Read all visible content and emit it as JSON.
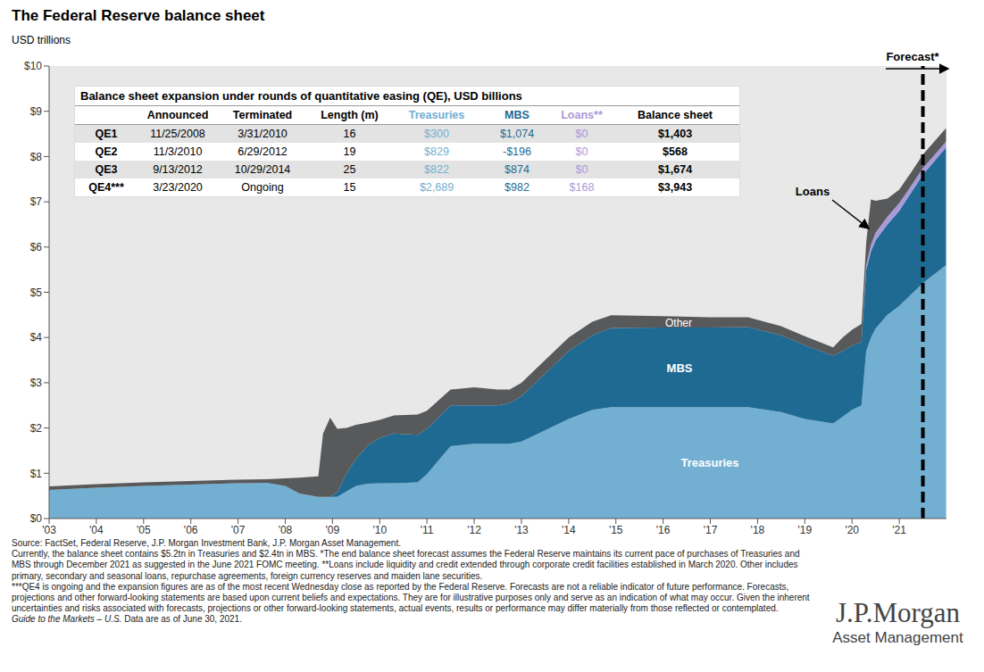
{
  "chart_data": {
    "type": "area",
    "stacked": true,
    "grid": false,
    "title": "The Federal Reserve balance sheet",
    "subtitle": "USD trillions",
    "x": [
      2003,
      2004,
      2005,
      2006,
      2007,
      2007.6,
      2008,
      2008.3,
      2008.7,
      2008.8,
      2008.95,
      2009.1,
      2009.3,
      2009.5,
      2009.75,
      2010,
      2010.3,
      2010.8,
      2011,
      2011.5,
      2012,
      2012.5,
      2012.75,
      2013,
      2013.5,
      2014,
      2014.5,
      2014.9,
      2016,
      2017,
      2017.8,
      2018.5,
      2019,
      2019.6,
      2019.8,
      2020,
      2020.2,
      2020.3,
      2020.4,
      2020.5,
      2020.75,
      2021,
      2021.25,
      2021.5,
      2021.99
    ],
    "series": [
      {
        "name": "Treasuries",
        "color": "#72afd1",
        "values": [
          0.63,
          0.68,
          0.72,
          0.75,
          0.78,
          0.79,
          0.72,
          0.55,
          0.48,
          0.48,
          0.48,
          0.48,
          0.6,
          0.72,
          0.77,
          0.78,
          0.78,
          0.8,
          0.98,
          1.6,
          1.65,
          1.65,
          1.65,
          1.7,
          1.95,
          2.2,
          2.4,
          2.46,
          2.46,
          2.46,
          2.46,
          2.35,
          2.2,
          2.1,
          2.25,
          2.4,
          2.5,
          3.7,
          4.0,
          4.2,
          4.5,
          4.7,
          4.95,
          5.2,
          5.6
        ]
      },
      {
        "name": "MBS",
        "color": "#1f6a93",
        "values": [
          0,
          0,
          0,
          0,
          0,
          0,
          0,
          0,
          0,
          0,
          0,
          0.1,
          0.4,
          0.6,
          0.85,
          1.0,
          1.1,
          1.05,
          1.0,
          0.9,
          0.85,
          0.85,
          0.9,
          1.0,
          1.25,
          1.5,
          1.65,
          1.75,
          1.76,
          1.76,
          1.77,
          1.7,
          1.63,
          1.5,
          1.45,
          1.42,
          1.4,
          1.8,
          1.9,
          1.95,
          2.0,
          2.1,
          2.25,
          2.4,
          2.6
        ]
      },
      {
        "name": "Loans",
        "color": "#a99ad9",
        "values": [
          0,
          0,
          0,
          0,
          0,
          0,
          0,
          0,
          0,
          0,
          0,
          0,
          0,
          0,
          0,
          0,
          0,
          0,
          0,
          0,
          0,
          0,
          0,
          0,
          0,
          0,
          0,
          0,
          0,
          0,
          0,
          0,
          0,
          0,
          0,
          0,
          0,
          0.1,
          0.15,
          0.17,
          0.17,
          0.17,
          0.15,
          0.14,
          0.13
        ]
      },
      {
        "name": "Other",
        "color": "#58595b",
        "values": [
          0.08,
          0.08,
          0.08,
          0.08,
          0.08,
          0.08,
          0.17,
          0.35,
          0.45,
          1.4,
          1.75,
          1.4,
          1.0,
          0.75,
          0.5,
          0.4,
          0.4,
          0.45,
          0.4,
          0.35,
          0.4,
          0.35,
          0.3,
          0.3,
          0.3,
          0.3,
          0.3,
          0.28,
          0.25,
          0.23,
          0.22,
          0.2,
          0.2,
          0.18,
          0.3,
          0.35,
          0.4,
          0.5,
          1.0,
          0.7,
          0.4,
          0.3,
          0.3,
          0.3,
          0.3
        ]
      }
    ],
    "xlim": [
      2003,
      2022
    ],
    "xticks": [
      {
        "value": 2003,
        "label": "'03"
      },
      {
        "value": 2004,
        "label": "'04"
      },
      {
        "value": 2005,
        "label": "'05"
      },
      {
        "value": 2006,
        "label": "'06"
      },
      {
        "value": 2007,
        "label": "'07"
      },
      {
        "value": 2008,
        "label": "'08"
      },
      {
        "value": 2009,
        "label": "'09"
      },
      {
        "value": 2010,
        "label": "'10"
      },
      {
        "value": 2011,
        "label": "'11"
      },
      {
        "value": 2012,
        "label": "'12"
      },
      {
        "value": 2013,
        "label": "'13"
      },
      {
        "value": 2014,
        "label": "'14"
      },
      {
        "value": 2015,
        "label": "'15"
      },
      {
        "value": 2016,
        "label": "'16"
      },
      {
        "value": 2017,
        "label": "'17"
      },
      {
        "value": 2018,
        "label": "'18"
      },
      {
        "value": 2019,
        "label": "'19"
      },
      {
        "value": 2020,
        "label": "'20"
      },
      {
        "value": 2021,
        "label": "'21"
      }
    ],
    "ylim": [
      0,
      10
    ],
    "yticks": [
      {
        "value": 0,
        "label": "$0"
      },
      {
        "value": 1,
        "label": "$1"
      },
      {
        "value": 2,
        "label": "$2"
      },
      {
        "value": 3,
        "label": "$3"
      },
      {
        "value": 4,
        "label": "$4"
      },
      {
        "value": 5,
        "label": "$5"
      },
      {
        "value": 6,
        "label": "$6"
      },
      {
        "value": 7,
        "label": "$7"
      },
      {
        "value": 8,
        "label": "$8"
      },
      {
        "value": 9,
        "label": "$9"
      },
      {
        "value": 10,
        "label": "$10"
      }
    ],
    "forecast_start": 2021.5,
    "forecast_label": "Forecast*"
  },
  "table": {
    "title": "Balance sheet expansion under rounds of quantitative easing (QE), USD billions",
    "columns": [
      "",
      "Announced",
      "Terminated",
      "Length (m)",
      "Treasuries",
      "MBS",
      "Loans**",
      "Balance sheet"
    ],
    "rows": [
      [
        "QE1",
        "11/25/2008",
        "3/31/2010",
        "16",
        "$300",
        "$1,074",
        "$0",
        "$1,403"
      ],
      [
        "QE2",
        "11/3/2010",
        "6/29/2012",
        "19",
        "$829",
        "-$196",
        "$0",
        "$568"
      ],
      [
        "QE3",
        "9/13/2012",
        "10/29/2014",
        "25",
        "$822",
        "$874",
        "$0",
        "$1,674"
      ],
      [
        "QE4***",
        "3/23/2020",
        "Ongoing",
        "15",
        "$2,689",
        "$982",
        "$168",
        "$3,943"
      ]
    ]
  },
  "footnotes": {
    "lines": [
      "Source: FactSet, Federal Reserve, J.P. Morgan Investment Bank, J.P. Morgan Asset Management.",
      "Currently, the balance sheet contains $5.2tn in Treasuries and $2.4tn in MBS. *The end balance sheet forecast assumes the Federal Reserve maintains its current pace of purchases of Treasuries and MBS through December 2021 as suggested in the June 2021 FOMC meeting. **Loans include liquidity and credit extended through corporate credit facilities established in March 2020. Other includes primary, secondary and seasonal loans, repurchase agreements, foreign currency reserves and maiden lane securities.",
      "***QE4 is ongoing and the expansion figures are as of the most recent Wednesday close as reported by the Federal Reserve. Forecasts are not a reliable indicator of future performance. Forecasts, projections and other forward-looking statements are based upon current beliefs and expectations. They are for illustrative purposes only and serve as an indication of what may occur. Given the inherent uncertainties and risks associated with forecasts, projections or other forward-looking statements, actual events, results or performance may differ materially from those reflected or contemplated."
    ],
    "italic": "Guide to the Markets – U.S.",
    "last": "Data are as of June 30, 2021."
  },
  "logo": {
    "name": "J.P.Morgan",
    "sub": "Asset Management"
  }
}
